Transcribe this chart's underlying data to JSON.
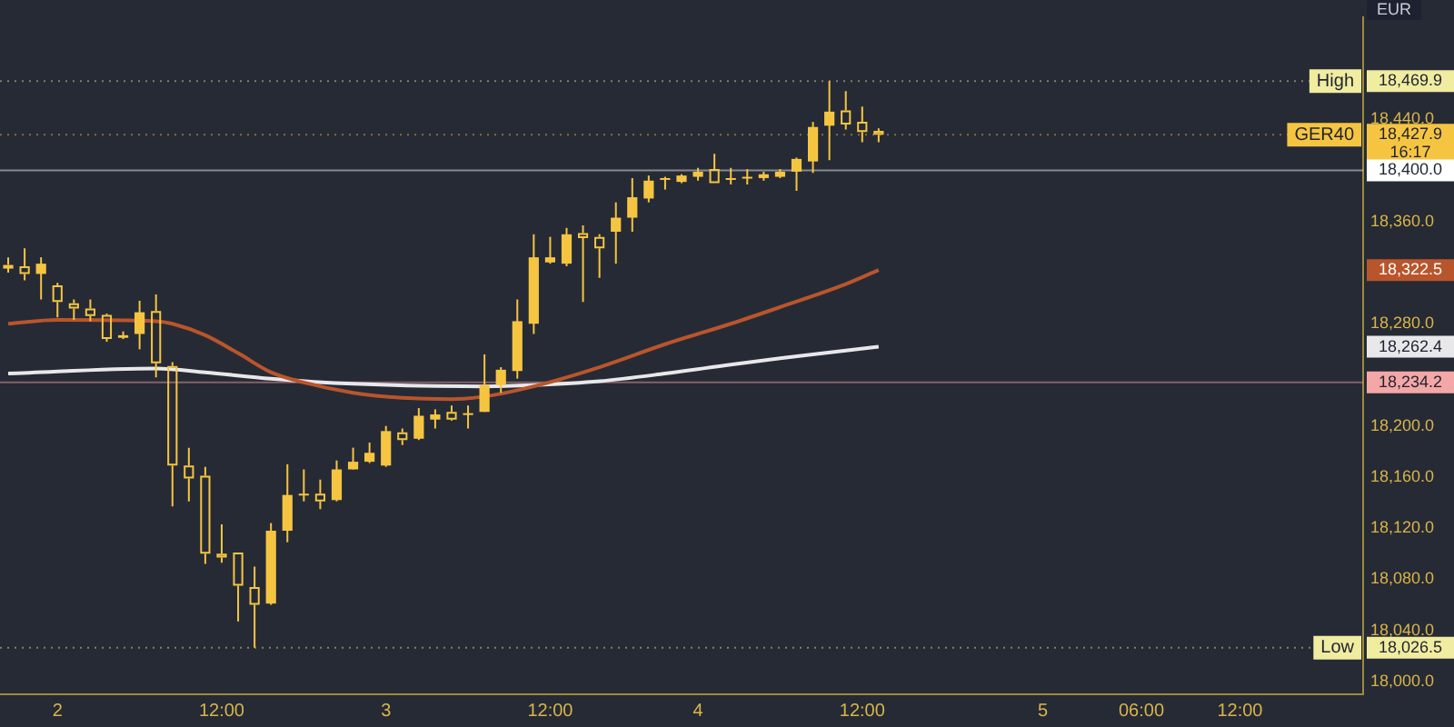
{
  "chart_data": {
    "type": "candlestick",
    "ylabel": "EUR",
    "color": "#f5c542",
    "categories": [
      null,
      null,
      null,
      "2",
      null,
      null,
      null,
      null,
      null,
      null,
      null,
      null,
      null,
      "12:00",
      null,
      null,
      null,
      null,
      null,
      null,
      null,
      null,
      null,
      "3",
      null,
      null,
      null,
      null,
      null,
      null,
      null,
      null,
      null,
      "12:00",
      null,
      null,
      null,
      null,
      null,
      null,
      null,
      null,
      "4",
      null,
      null,
      null,
      null,
      null,
      null,
      null,
      null,
      null,
      "12:00",
      null,
      null,
      null,
      null,
      null,
      null,
      null,
      null,
      null,
      null,
      "5",
      null,
      null,
      null,
      null,
      null,
      "06:00",
      null,
      null,
      null,
      null,
      null,
      "12:00",
      null,
      null,
      null,
      null,
      null,
      null,
      null
    ],
    "ohlc": [
      [
        18326,
        18332,
        18320,
        18325
      ],
      [
        18325,
        18339,
        18314,
        18319
      ],
      [
        18319,
        18332,
        18299,
        18327
      ],
      [
        18310,
        18312,
        18285,
        18297
      ],
      [
        18296,
        18299,
        18283,
        18292
      ],
      [
        18292,
        18299,
        18282,
        18286
      ],
      [
        18287,
        18288,
        18266,
        18268
      ],
      [
        18269,
        18274,
        18268,
        18271
      ],
      [
        18272,
        18298,
        18260,
        18289
      ],
      [
        18290,
        18303,
        18238,
        18249
      ],
      [
        18247,
        18250,
        18137,
        18169
      ],
      [
        18169,
        18183,
        18141,
        18159
      ],
      [
        18161,
        18168,
        18092,
        18100
      ],
      [
        18100,
        18123,
        18093,
        18097
      ],
      [
        18101,
        18101,
        18047,
        18075
      ],
      [
        18074,
        18090,
        18026.5,
        18060
      ],
      [
        18061,
        18124,
        18060,
        18118
      ],
      [
        18118,
        18170,
        18109,
        18146
      ],
      [
        18146,
        18166,
        18141,
        18147
      ],
      [
        18147,
        18158,
        18135,
        18141
      ],
      [
        18142,
        18173,
        18141,
        18166
      ],
      [
        18166,
        18183,
        18166,
        18172
      ],
      [
        18172,
        18187,
        18171,
        18179
      ],
      [
        18169,
        18200,
        18168,
        18196
      ],
      [
        18195,
        18198,
        18185,
        18189
      ],
      [
        18190,
        18214,
        18189,
        18208
      ],
      [
        18205,
        18213,
        18198,
        18209
      ],
      [
        18211,
        18216,
        18204,
        18205
      ],
      [
        18209,
        18216,
        18198,
        18210
      ],
      [
        18211,
        18256,
        18211,
        18232
      ],
      [
        18232,
        18246,
        18226,
        18244
      ],
      [
        18243,
        18299,
        18237,
        18282
      ],
      [
        18280,
        18350,
        18272,
        18332
      ],
      [
        18328,
        18348,
        18327,
        18332
      ],
      [
        18327,
        18355,
        18325,
        18350
      ],
      [
        18351,
        18357,
        18297,
        18347
      ],
      [
        18348,
        18350,
        18316,
        18339
      ],
      [
        18352,
        18375,
        18327,
        18363
      ],
      [
        18363,
        18394,
        18352,
        18379
      ],
      [
        18378,
        18396,
        18375,
        18392
      ],
      [
        18393,
        18395,
        18385,
        18394
      ],
      [
        18391,
        18397,
        18390,
        18396
      ],
      [
        18395,
        18402,
        18392,
        18399
      ],
      [
        18401,
        18413,
        18390,
        18390
      ],
      [
        18393,
        18402,
        18389,
        18394
      ],
      [
        18394,
        18401,
        18389,
        18395
      ],
      [
        18394,
        18399,
        18392,
        18397
      ],
      [
        18395,
        18401,
        18394,
        18399
      ],
      [
        18399,
        18410,
        18384,
        18409
      ],
      [
        18407,
        18438,
        18398,
        18434
      ],
      [
        18435,
        18469.9,
        18408,
        18446
      ],
      [
        18447,
        18462,
        18432,
        18436
      ],
      [
        18438,
        18450,
        18422,
        18430
      ],
      [
        18431,
        18433,
        18422,
        18427.9
      ],
      null,
      null,
      null,
      null,
      null,
      null,
      null,
      null,
      null,
      null,
      null,
      null,
      null,
      null,
      null,
      null,
      null,
      null,
      null,
      null,
      null,
      null,
      null,
      null,
      null,
      null,
      null,
      null,
      null
    ],
    "series": [
      {
        "type": "line",
        "color": "#b9552c",
        "values": [
          18280,
          null,
          null,
          18283,
          null,
          null,
          null,
          null,
          null,
          18282,
          18280,
          null,
          18271,
          null,
          18257,
          null,
          18242,
          null,
          18234,
          null,
          null,
          18226,
          null,
          null,
          18222,
          null,
          null,
          18221,
          null,
          18223,
          null,
          null,
          18231,
          null,
          null,
          null,
          18246,
          null,
          null,
          null,
          18264,
          null,
          null,
          null,
          18280,
          null,
          null,
          18293,
          null,
          null,
          null,
          18311,
          null,
          18322,
          null,
          null,
          null,
          null,
          null,
          null,
          null,
          null,
          null,
          null,
          null,
          null,
          null,
          null,
          null,
          null,
          null,
          null,
          null,
          null,
          null,
          null,
          null,
          null,
          null,
          null,
          null,
          null,
          null
        ]
      },
      {
        "type": "line",
        "color": "#e8e8ea",
        "values": [
          18241,
          null,
          null,
          null,
          null,
          null,
          null,
          null,
          null,
          18245,
          null,
          null,
          18242,
          null,
          null,
          null,
          18237,
          null,
          null,
          null,
          null,
          18233,
          null,
          null,
          null,
          null,
          null,
          null,
          null,
          18231,
          null,
          null,
          18232,
          null,
          null,
          null,
          18235,
          null,
          null,
          null,
          18241,
          null,
          null,
          null,
          18248,
          null,
          null,
          18253,
          null,
          null,
          null,
          18259,
          null,
          18262,
          null,
          null,
          null,
          null,
          null,
          null,
          null,
          null,
          null,
          null,
          null,
          null,
          null,
          null,
          null,
          null,
          null,
          null,
          null,
          null,
          null,
          null,
          null,
          null,
          null,
          null,
          null,
          null,
          null
        ]
      }
    ],
    "ylim": [
      17990,
      18520
    ],
    "yticks": [
      {
        "value": 18000,
        "label": "18,000.0"
      },
      {
        "value": 18040,
        "label": "18,040.0"
      },
      {
        "value": 18080,
        "label": "18,080.0"
      },
      {
        "value": 18120,
        "label": "18,120.0"
      },
      {
        "value": 18160,
        "label": "18,160.0"
      },
      {
        "value": 18200,
        "label": "18,200.0"
      },
      {
        "value": 18280,
        "label": "18,280.0"
      },
      {
        "value": 18360,
        "label": "18,360.0"
      },
      {
        "value": 18440,
        "label": "18,440.0"
      }
    ],
    "ref_lines": [
      {
        "axis": "y",
        "value": 18469.9,
        "label": "High",
        "color": "#f0eca0",
        "line_style": "dotted"
      },
      {
        "axis": "y",
        "value": 18427.9,
        "label": "GER40",
        "color": "#f5c542",
        "line_style": "dotted"
      },
      {
        "axis": "y",
        "value": 18400,
        "color": "#ffffff",
        "line_style": "solid"
      },
      {
        "axis": "y",
        "value": 18234.2,
        "color": "#f4a7a7",
        "line_style": "solid"
      },
      {
        "axis": "y",
        "value": 18026.5,
        "label": "Low",
        "color": "#f0eca0",
        "line_style": "dotted"
      }
    ],
    "annotations": [
      "18,469.9",
      "18,427.9",
      "18,400.0",
      "18,322.5",
      "18,262.4",
      "18,234.2",
      "18,026.5",
      "16:17"
    ]
  }
}
